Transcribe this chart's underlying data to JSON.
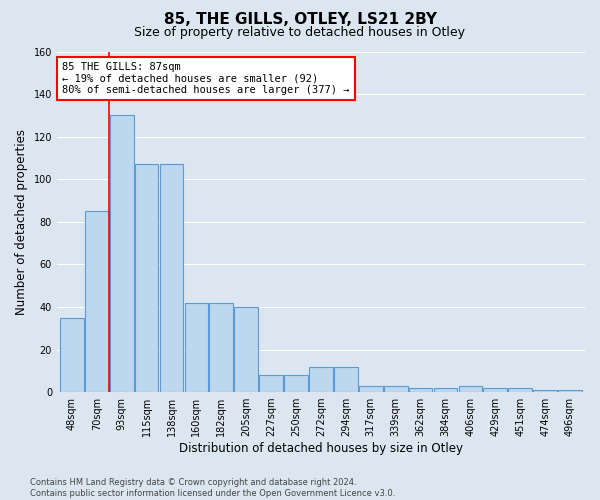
{
  "title": "85, THE GILLS, OTLEY, LS21 2BY",
  "subtitle": "Size of property relative to detached houses in Otley",
  "xlabel": "Distribution of detached houses by size in Otley",
  "ylabel": "Number of detached properties",
  "footer": "Contains HM Land Registry data © Crown copyright and database right 2024.\nContains public sector information licensed under the Open Government Licence v3.0.",
  "categories": [
    "48sqm",
    "70sqm",
    "93sqm",
    "115sqm",
    "138sqm",
    "160sqm",
    "182sqm",
    "205sqm",
    "227sqm",
    "250sqm",
    "272sqm",
    "294sqm",
    "317sqm",
    "339sqm",
    "362sqm",
    "384sqm",
    "406sqm",
    "429sqm",
    "451sqm",
    "474sqm",
    "496sqm"
  ],
  "values": [
    35,
    85,
    130,
    107,
    107,
    42,
    42,
    40,
    8,
    8,
    12,
    12,
    3,
    3,
    2,
    2,
    3,
    2,
    2,
    1,
    1
  ],
  "bar_color": "#bdd7ee",
  "bar_edge_color": "#5b9bd5",
  "annotation_line1": "85 THE GILLS: 87sqm",
  "annotation_line2": "← 19% of detached houses are smaller (92)",
  "annotation_line3": "80% of semi-detached houses are larger (377) →",
  "annotation_box_color": "#ffffff",
  "annotation_box_edge_color": "#ff0000",
  "vline_color": "#ff0000",
  "vline_x": 1.5,
  "ylim": [
    0,
    160
  ],
  "yticks": [
    0,
    20,
    40,
    60,
    80,
    100,
    120,
    140,
    160
  ],
  "background_color": "#dce6f1",
  "plot_background_color": "#dce6f1",
  "grid_color": "#ffffff",
  "title_fontsize": 11,
  "subtitle_fontsize": 9,
  "tick_fontsize": 7,
  "label_fontsize": 8.5,
  "annotation_fontsize": 7.5
}
